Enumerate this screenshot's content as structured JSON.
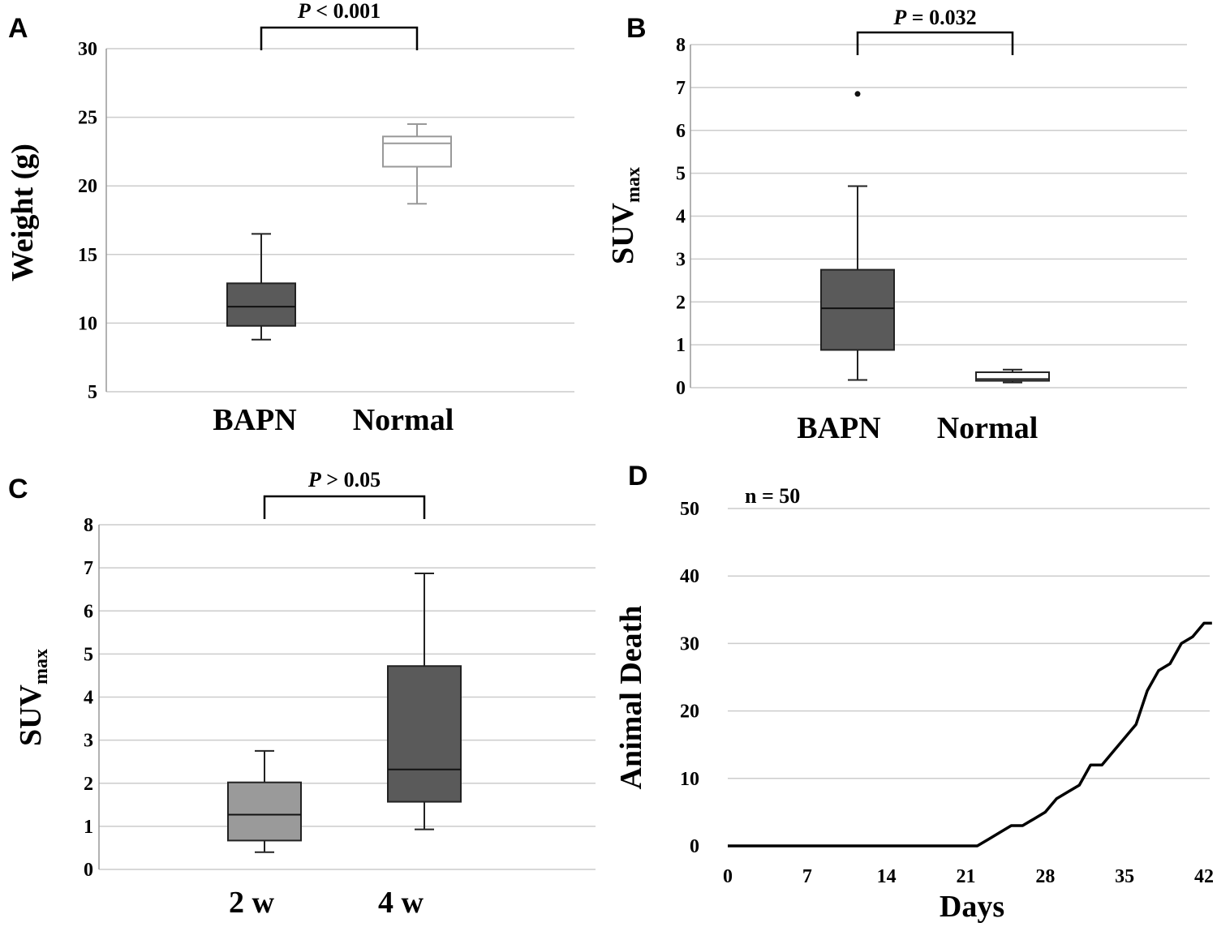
{
  "chart_data": [
    {
      "type": "box",
      "panel": "A",
      "title": "",
      "xlabel": "",
      "ylabel": "Weight (g)",
      "ylim": [
        5,
        30
      ],
      "yticks": [
        5,
        10,
        15,
        20,
        25,
        30
      ],
      "categories": [
        "BAPN",
        "Normal"
      ],
      "boxes": [
        {
          "name": "BAPN",
          "min": 8.8,
          "q1": 9.8,
          "median": 11.2,
          "q3": 12.9,
          "max": 16.5,
          "fill": "#5a5a5a",
          "stroke": "#222222"
        },
        {
          "name": "Normal",
          "min": 18.7,
          "q1": 21.4,
          "median": 23.1,
          "q3": 23.6,
          "max": 24.5,
          "fill": "#ffffff",
          "stroke": "#999999"
        }
      ],
      "outliers": [],
      "significance": {
        "from": "BAPN",
        "to": "Normal",
        "p_symbol": "P",
        "p_rest": " < 0.001"
      }
    },
    {
      "type": "box",
      "panel": "B",
      "title": "",
      "xlabel": "",
      "ylabel_main": "SUV",
      "ylabel_sub": "max",
      "ylim": [
        0,
        8
      ],
      "yticks": [
        0,
        1,
        2,
        3,
        4,
        5,
        6,
        7,
        8
      ],
      "categories": [
        "BAPN",
        "Normal"
      ],
      "boxes": [
        {
          "name": "BAPN",
          "min": 0.18,
          "q1": 0.88,
          "median": 1.85,
          "q3": 2.75,
          "max": 4.7,
          "fill": "#5a5a5a",
          "stroke": "#222222"
        },
        {
          "name": "Normal",
          "min": 0.12,
          "q1": 0.16,
          "median": 0.2,
          "q3": 0.36,
          "max": 0.42,
          "fill": "#ffffff",
          "stroke": "#222222"
        }
      ],
      "outliers": [
        {
          "category": "BAPN",
          "value": 6.85
        }
      ],
      "significance": {
        "from": "BAPN",
        "to": "Normal",
        "p_symbol": "P",
        "p_rest": " = 0.032"
      }
    },
    {
      "type": "box",
      "panel": "C",
      "title": "",
      "xlabel": "",
      "ylabel_main": "SUV",
      "ylabel_sub": "max",
      "ylim": [
        0,
        8
      ],
      "yticks": [
        0,
        1,
        2,
        3,
        4,
        5,
        6,
        7,
        8
      ],
      "categories": [
        "2 w",
        "4 w"
      ],
      "boxes": [
        {
          "name": "2 w",
          "min": 0.4,
          "q1": 0.67,
          "median": 1.27,
          "q3": 2.02,
          "max": 2.75,
          "fill": "#9a9a9a",
          "stroke": "#222222"
        },
        {
          "name": "4 w",
          "min": 0.93,
          "q1": 1.57,
          "median": 2.32,
          "q3": 4.72,
          "max": 6.87,
          "fill": "#5a5a5a",
          "stroke": "#222222"
        }
      ],
      "outliers": [],
      "significance": {
        "from": "2 w",
        "to": "4 w",
        "p_symbol": "P",
        "p_rest": " > 0.05"
      }
    },
    {
      "type": "line",
      "panel": "D",
      "title": "",
      "xlabel": "Days",
      "ylabel": "Animal Death",
      "xlim": [
        0,
        42.5
      ],
      "ylim": [
        0,
        50
      ],
      "xticks": [
        0,
        7,
        14,
        21,
        28,
        35,
        42
      ],
      "yticks": [
        0,
        10,
        20,
        30,
        40,
        50
      ],
      "annotation": "n = 50",
      "series": [
        {
          "name": "Animal Death",
          "color": "#000000",
          "x": [
            0,
            22,
            23,
            24,
            25,
            26,
            27,
            28,
            29,
            30,
            31,
            32,
            33,
            34,
            35,
            36,
            37,
            38,
            39,
            40,
            41,
            42,
            42.7
          ],
          "y": [
            0,
            0,
            1,
            2,
            3,
            3,
            4,
            5,
            7,
            8,
            9,
            12,
            12,
            14,
            16,
            18,
            23,
            26,
            27,
            30,
            31,
            33,
            33
          ]
        }
      ]
    }
  ]
}
